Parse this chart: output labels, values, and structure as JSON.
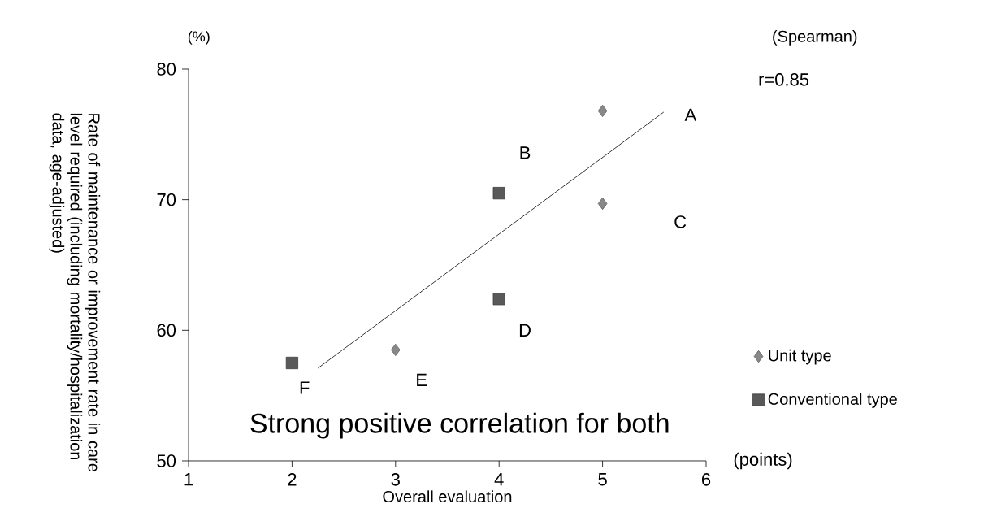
{
  "chart_data": {
    "type": "scatter",
    "xlabel": "Overall evaluation",
    "ylabel": "Rate of maintenance or improvement rate in care level required (including mortality/hospitalization data, age-adjusted)",
    "xlim": [
      1,
      6
    ],
    "ylim": [
      50,
      80
    ],
    "xticks": [
      1,
      2,
      3,
      4,
      5,
      6
    ],
    "yticks": [
      50,
      60,
      70,
      80
    ],
    "grid": false,
    "legend": "right",
    "series": [
      {
        "name": "Unit type",
        "color": "#888888",
        "marker": "diamond",
        "x": [
          5,
          5,
          3
        ],
        "values": [
          76.8,
          69.7,
          58.5
        ]
      },
      {
        "name": "Conventional type",
        "color": "#595959",
        "marker": "square",
        "x": [
          4,
          4,
          2
        ],
        "values": [
          70.5,
          62.4,
          57.5
        ]
      },
      {
        "type": "line",
        "color": "#000000",
        "marker": "none",
        "line_style": "solid",
        "x": [
          2.25,
          5.59
        ],
        "values": [
          57.1,
          76.7
        ]
      }
    ],
    "annotations": [
      "A",
      {
        "text": "B",
        "x": 4,
        "y": 70.5
      },
      "C",
      {
        "text": "D",
        "x": 4,
        "y": 62.4
      },
      {
        "text": "E",
        "x": 3,
        "y": 58.5
      },
      {
        "text": "F",
        "x": 2,
        "y": 57.5
      },
      "(%)",
      "(Spearman)",
      "r=0.85",
      "(points)",
      "Strong positive correlation for both"
    ]
  }
}
